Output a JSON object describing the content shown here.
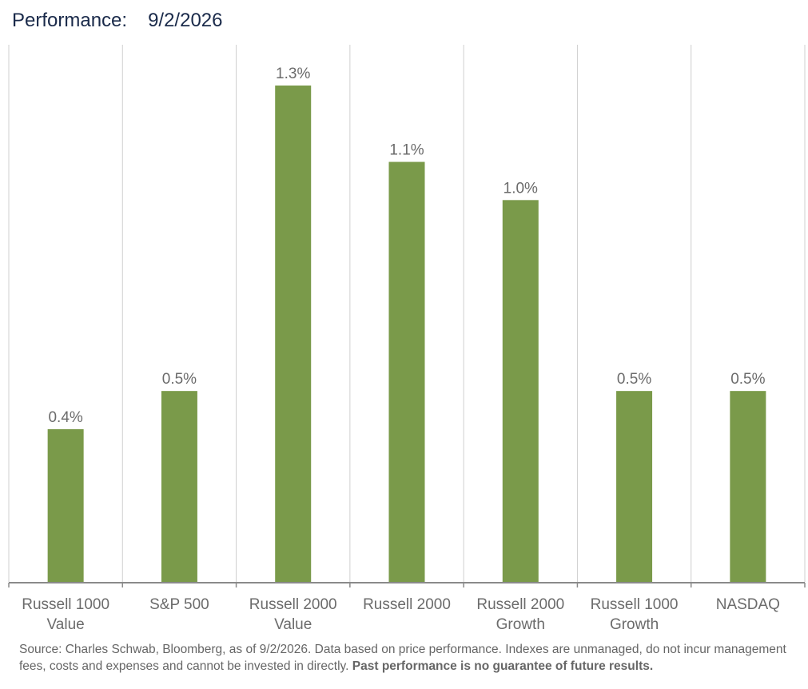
{
  "header": {
    "label": "Performance:",
    "date": "9/2/2026"
  },
  "chart_data": {
    "type": "bar",
    "categories": [
      [
        "Russell 1000",
        "Value"
      ],
      [
        "S&P 500"
      ],
      [
        "Russell 2000",
        "Value"
      ],
      [
        "Russell 2000"
      ],
      [
        "Russell 2000",
        "Growth"
      ],
      [
        "Russell 1000",
        "Growth"
      ],
      [
        "NASDAQ"
      ]
    ],
    "values": [
      0.4,
      0.5,
      1.3,
      1.1,
      1.0,
      0.5,
      0.5
    ],
    "data_labels": [
      "0.4%",
      "0.5%",
      "1.3%",
      "1.1%",
      "1.0%",
      "0.5%",
      "0.5%"
    ],
    "ylim": [
      0,
      1.4
    ],
    "bar_color": "#7a9a4a",
    "grid": "vertical separators",
    "legend": "none"
  },
  "footnote": {
    "text": "Source: Charles Schwab, Bloomberg, as of 9/2/2026. Data based on price performance. Indexes are unmanaged, do not incur management fees, costs and expenses and cannot be invested in directly.",
    "bold": "Past performance is no guarantee of future results."
  }
}
